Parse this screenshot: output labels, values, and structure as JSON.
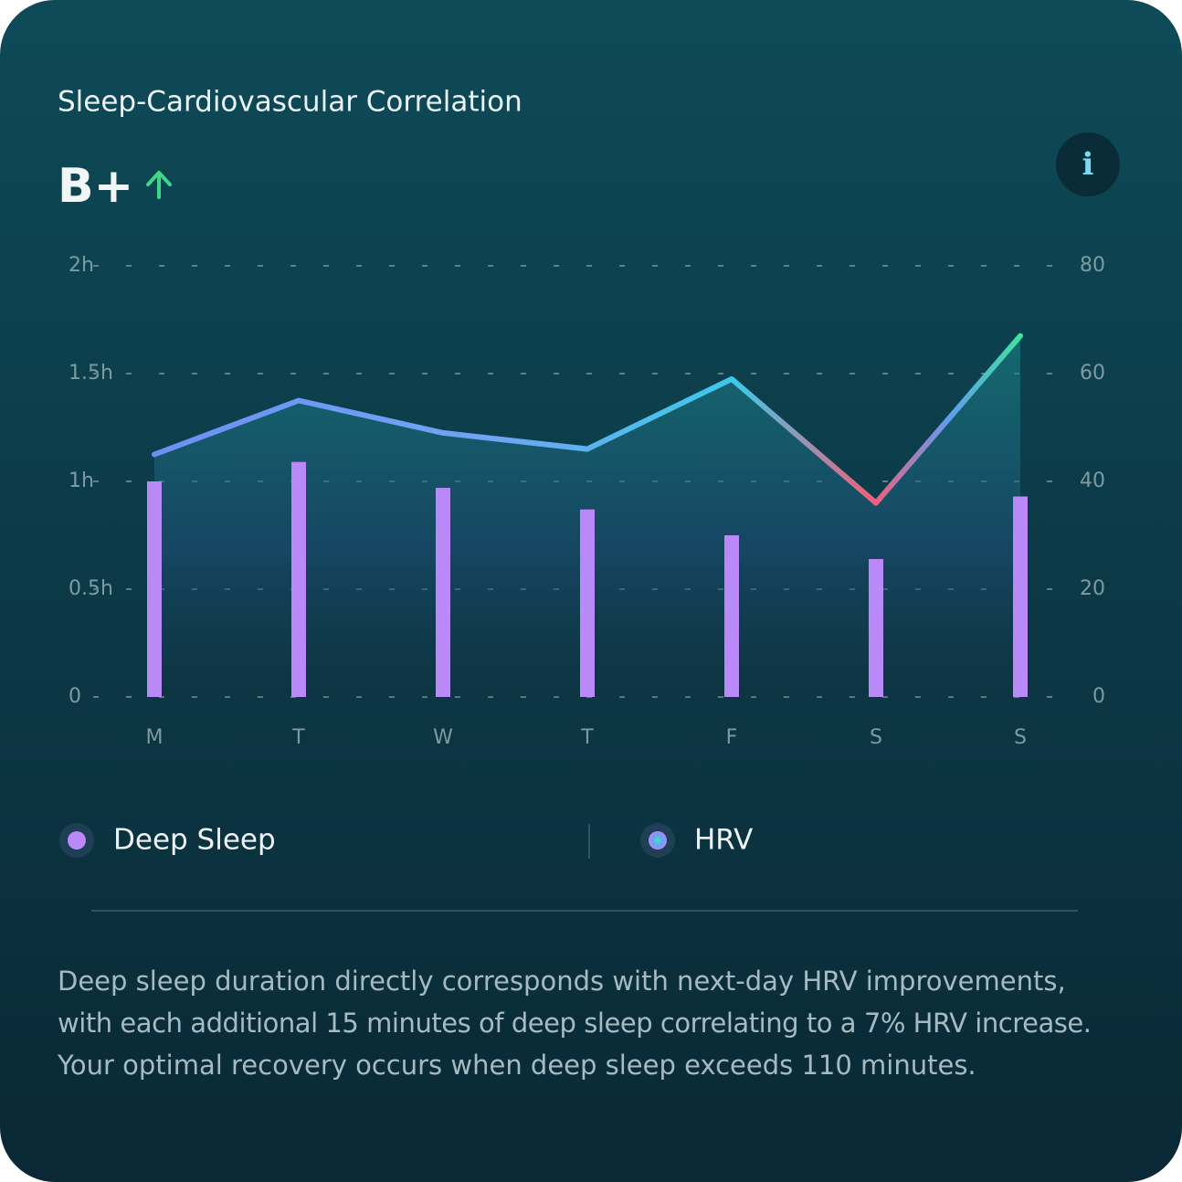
{
  "card": {
    "title": "Sleep-Cardiovascular Correlation",
    "grade": "B+",
    "info": "i"
  },
  "chart_data": {
    "type": "bar-line",
    "categories": [
      "M",
      "T",
      "W",
      "T",
      "F",
      "S",
      "S"
    ],
    "series": [
      {
        "name": "Deep Sleep",
        "color": "#b98af7",
        "type": "bar",
        "axis": "y",
        "values": [
          1.0,
          1.09,
          0.97,
          0.87,
          0.75,
          0.64,
          0.93
        ]
      },
      {
        "name": "HRV",
        "color": "#5aa8f5",
        "type": "line",
        "axis": "y2",
        "values": [
          45,
          55,
          49,
          46,
          59,
          36,
          67
        ]
      }
    ],
    "ylim": [
      0,
      2
    ],
    "yticks": [
      0,
      {
        "value": 0.5,
        "label": "0.5h"
      },
      {
        "value": 1,
        "label": "1h"
      },
      {
        "value": 1.5,
        "label": "1.5h"
      },
      {
        "value": 2,
        "label": "2h"
      }
    ],
    "y2lim": [
      0,
      80
    ],
    "y2ticks": [
      0,
      20,
      40,
      60,
      80
    ],
    "grid": true
  },
  "description": [
    "Deep sleep duration directly corresponds with next-day HRV improvements,",
    "with each additional 15 minutes of deep sleep correlating to a 7% HRV increase.",
    "Your optimal recovery occurs when deep sleep exceeds 110 minutes."
  ]
}
